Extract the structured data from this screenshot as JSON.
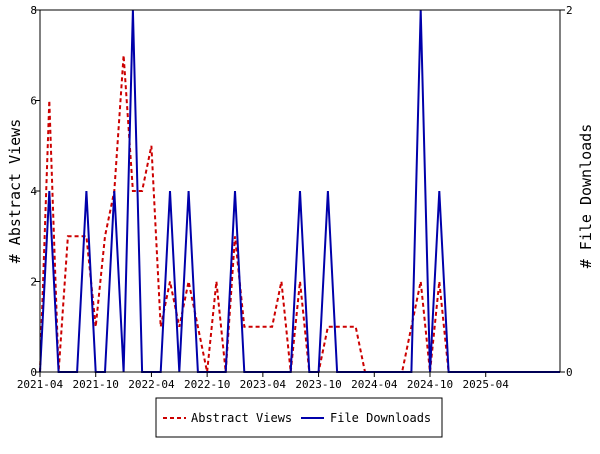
{
  "chart_data": {
    "type": "line",
    "title": "",
    "xlabel": "",
    "ylabel_left": "# Abstract Views",
    "ylabel_right": "# File Downloads",
    "x_ticks": [
      "2021-04",
      "2021-10",
      "2022-04",
      "2022-10",
      "2023-04",
      "2023-10",
      "2024-04",
      "2024-10",
      "2025-04"
    ],
    "x_range": [
      "2021-04",
      "2025-12"
    ],
    "ylim_left": [
      0,
      8
    ],
    "ylim_right": [
      0,
      2
    ],
    "y_ticks_left": [
      0,
      2,
      4,
      6,
      8
    ],
    "y_ticks_right": [
      0,
      2
    ],
    "grid": false,
    "legend_position": "bottom-center",
    "series": [
      {
        "name": "Abstract Views",
        "axis": "left",
        "color": "#cc0000",
        "style": "dashed",
        "points": [
          [
            "2021-04",
            0
          ],
          [
            "2021-05",
            6
          ],
          [
            "2021-06",
            0
          ],
          [
            "2021-07",
            3
          ],
          [
            "2021-08",
            3
          ],
          [
            "2021-09",
            3
          ],
          [
            "2021-10",
            1
          ],
          [
            "2021-11",
            3
          ],
          [
            "2021-12",
            4
          ],
          [
            "2022-01",
            7
          ],
          [
            "2022-02",
            4
          ],
          [
            "2022-03",
            4
          ],
          [
            "2022-04",
            5
          ],
          [
            "2022-05",
            1
          ],
          [
            "2022-06",
            2
          ],
          [
            "2022-07",
            1
          ],
          [
            "2022-08",
            2
          ],
          [
            "2022-09",
            1
          ],
          [
            "2022-10",
            0
          ],
          [
            "2022-11",
            2
          ],
          [
            "2022-12",
            0
          ],
          [
            "2023-01",
            3
          ],
          [
            "2023-02",
            1
          ],
          [
            "2023-03",
            1
          ],
          [
            "2023-04",
            1
          ],
          [
            "2023-05",
            1
          ],
          [
            "2023-06",
            2
          ],
          [
            "2023-07",
            0
          ],
          [
            "2023-08",
            2
          ],
          [
            "2023-09",
            0
          ],
          [
            "2023-10",
            0
          ],
          [
            "2023-11",
            1
          ],
          [
            "2023-12",
            1
          ],
          [
            "2024-01",
            1
          ],
          [
            "2024-02",
            1
          ],
          [
            "2024-03",
            0
          ],
          [
            "2024-04",
            0
          ],
          [
            "2024-05",
            0
          ],
          [
            "2024-06",
            0
          ],
          [
            "2024-07",
            0
          ],
          [
            "2024-08",
            1
          ],
          [
            "2024-09",
            2
          ],
          [
            "2024-10",
            0
          ],
          [
            "2024-11",
            2
          ],
          [
            "2024-12",
            0
          ],
          [
            "2025-01",
            0
          ],
          [
            "2025-02",
            0
          ],
          [
            "2025-03",
            0
          ],
          [
            "2025-04",
            0
          ],
          [
            "2025-05",
            0
          ],
          [
            "2025-06",
            0
          ],
          [
            "2025-07",
            0
          ],
          [
            "2025-08",
            0
          ],
          [
            "2025-09",
            0
          ],
          [
            "2025-10",
            0
          ],
          [
            "2025-11",
            0
          ],
          [
            "2025-12",
            0
          ]
        ]
      },
      {
        "name": "File Downloads",
        "axis": "right",
        "color": "#0000aa",
        "style": "solid",
        "points": [
          [
            "2021-04",
            0
          ],
          [
            "2021-05",
            1
          ],
          [
            "2021-06",
            0
          ],
          [
            "2021-07",
            0
          ],
          [
            "2021-08",
            0
          ],
          [
            "2021-09",
            1
          ],
          [
            "2021-10",
            0
          ],
          [
            "2021-11",
            0
          ],
          [
            "2021-12",
            1
          ],
          [
            "2022-01",
            0
          ],
          [
            "2022-02",
            2
          ],
          [
            "2022-03",
            0
          ],
          [
            "2022-04",
            0
          ],
          [
            "2022-05",
            0
          ],
          [
            "2022-06",
            1
          ],
          [
            "2022-07",
            0
          ],
          [
            "2022-08",
            1
          ],
          [
            "2022-09",
            0
          ],
          [
            "2022-10",
            0
          ],
          [
            "2022-11",
            0
          ],
          [
            "2022-12",
            0
          ],
          [
            "2023-01",
            1
          ],
          [
            "2023-02",
            0
          ],
          [
            "2023-03",
            0
          ],
          [
            "2023-04",
            0
          ],
          [
            "2023-05",
            0
          ],
          [
            "2023-06",
            0
          ],
          [
            "2023-07",
            0
          ],
          [
            "2023-08",
            1
          ],
          [
            "2023-09",
            0
          ],
          [
            "2023-10",
            0
          ],
          [
            "2023-11",
            1
          ],
          [
            "2023-12",
            0
          ],
          [
            "2024-01",
            0
          ],
          [
            "2024-02",
            0
          ],
          [
            "2024-03",
            0
          ],
          [
            "2024-04",
            0
          ],
          [
            "2024-05",
            0
          ],
          [
            "2024-06",
            0
          ],
          [
            "2024-07",
            0
          ],
          [
            "2024-08",
            0
          ],
          [
            "2024-09",
            2
          ],
          [
            "2024-10",
            0
          ],
          [
            "2024-11",
            1
          ],
          [
            "2024-12",
            0
          ],
          [
            "2025-01",
            0
          ],
          [
            "2025-02",
            0
          ],
          [
            "2025-03",
            0
          ],
          [
            "2025-04",
            0
          ],
          [
            "2025-05",
            0
          ],
          [
            "2025-06",
            0
          ],
          [
            "2025-07",
            0
          ],
          [
            "2025-08",
            0
          ],
          [
            "2025-09",
            0
          ],
          [
            "2025-10",
            0
          ],
          [
            "2025-11",
            0
          ],
          [
            "2025-12",
            0
          ]
        ]
      }
    ]
  }
}
